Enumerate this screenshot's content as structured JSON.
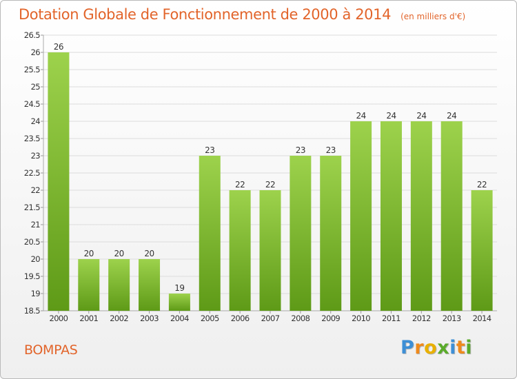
{
  "title": "Dotation Globale de Fonctionnement de 2000 à 2014",
  "subtitle": "(en milliers d'€)",
  "commune": "BOMPAS",
  "logo": {
    "letters": [
      "P",
      "r",
      "o",
      "x",
      "i",
      "t",
      "i"
    ],
    "colors": [
      "#3d8fd6",
      "#ef8a1c",
      "#e9b000",
      "#5aab2a",
      "#3d8fd6",
      "#ef8a1c",
      "#5aab2a"
    ]
  },
  "colors": {
    "title": "#e2642a",
    "bar_top": "#9dd24c",
    "bar_bottom": "#5e9a17"
  },
  "chart_data": {
    "type": "bar",
    "categories": [
      "2000",
      "2001",
      "2002",
      "2003",
      "2004",
      "2005",
      "2006",
      "2007",
      "2008",
      "2009",
      "2010",
      "2011",
      "2012",
      "2013",
      "2014"
    ],
    "values": [
      26,
      20,
      20,
      20,
      19,
      23,
      22,
      22,
      23,
      23,
      24,
      24,
      24,
      24,
      22
    ],
    "data_labels": [
      "26",
      "20",
      "20",
      "20",
      "19",
      "23",
      "22",
      "22",
      "23",
      "23",
      "24",
      "24",
      "24",
      "24",
      "22"
    ],
    "ylim": [
      18.5,
      26.5
    ],
    "yticks": [
      18.5,
      19,
      19.5,
      20,
      20.5,
      21,
      21.5,
      22,
      22.5,
      23,
      23.5,
      24,
      24.5,
      25,
      25.5,
      26,
      26.5
    ],
    "ytick_labels": [
      "18.5",
      "19",
      "19.5",
      "20",
      "20.5",
      "21",
      "21.5",
      "22",
      "22.5",
      "23",
      "23.5",
      "24",
      "24.5",
      "25",
      "25.5",
      "26",
      "26.5"
    ],
    "grid": true,
    "legend": "none"
  }
}
